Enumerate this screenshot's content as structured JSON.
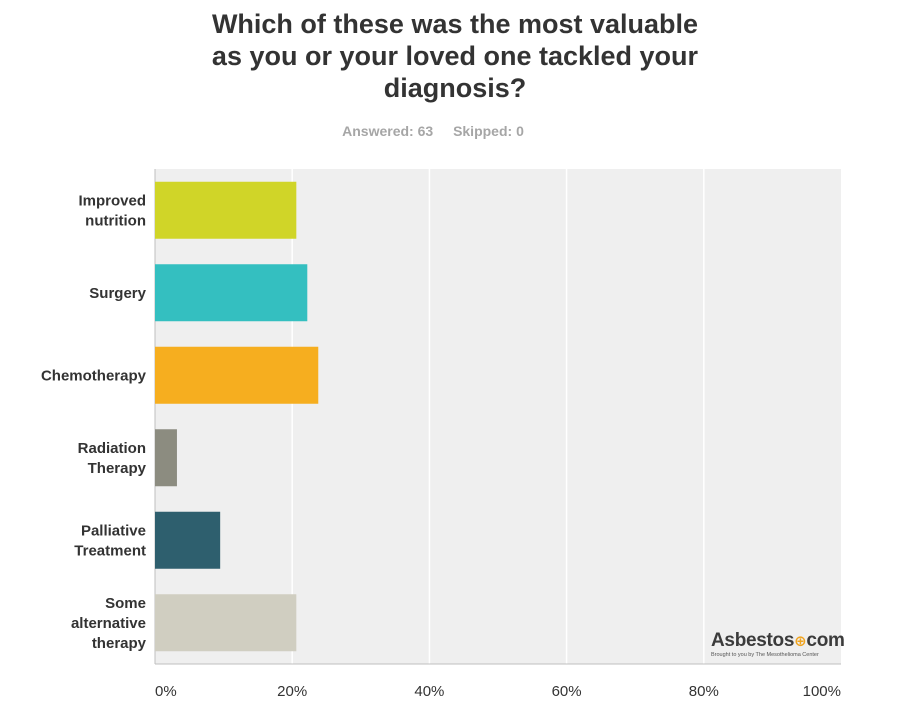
{
  "header": {
    "title_lines": [
      "Which of these was the most valuable",
      "as you or your loved one tackled your",
      "diagnosis?"
    ],
    "answered": "Answered: 63",
    "skipped": "Skipped: 0"
  },
  "logo": {
    "name": "Asbestos",
    "suffix": "com",
    "tagline": "Brought to you by The Mesothelioma Center"
  },
  "colors": {
    "plot_bg": "#efefef",
    "grid": "#ffffff",
    "axis": "#bfbfbf"
  },
  "chart_data": {
    "type": "bar",
    "orientation": "horizontal",
    "title": "Which of these was the most valuable as you or your loved one tackled your diagnosis?",
    "categories": [
      [
        "Improved",
        "nutrition"
      ],
      [
        "Surgery"
      ],
      [
        "Chemotherapy"
      ],
      [
        "Radiation",
        "Therapy"
      ],
      [
        "Palliative",
        "Treatment"
      ],
      [
        "Some",
        "alternative",
        "therapy"
      ]
    ],
    "values": [
      20.6,
      22.2,
      23.8,
      3.2,
      9.5,
      20.6
    ],
    "colors": [
      "#d0d528",
      "#34bfc0",
      "#f6ae1f",
      "#8c8c80",
      "#2e5f6e",
      "#d0cec1"
    ],
    "xlim": [
      0,
      100
    ],
    "xticks": [
      "0%",
      "20%",
      "40%",
      "60%",
      "80%",
      "100%"
    ],
    "grid": true,
    "xlabel": "",
    "ylabel": ""
  }
}
